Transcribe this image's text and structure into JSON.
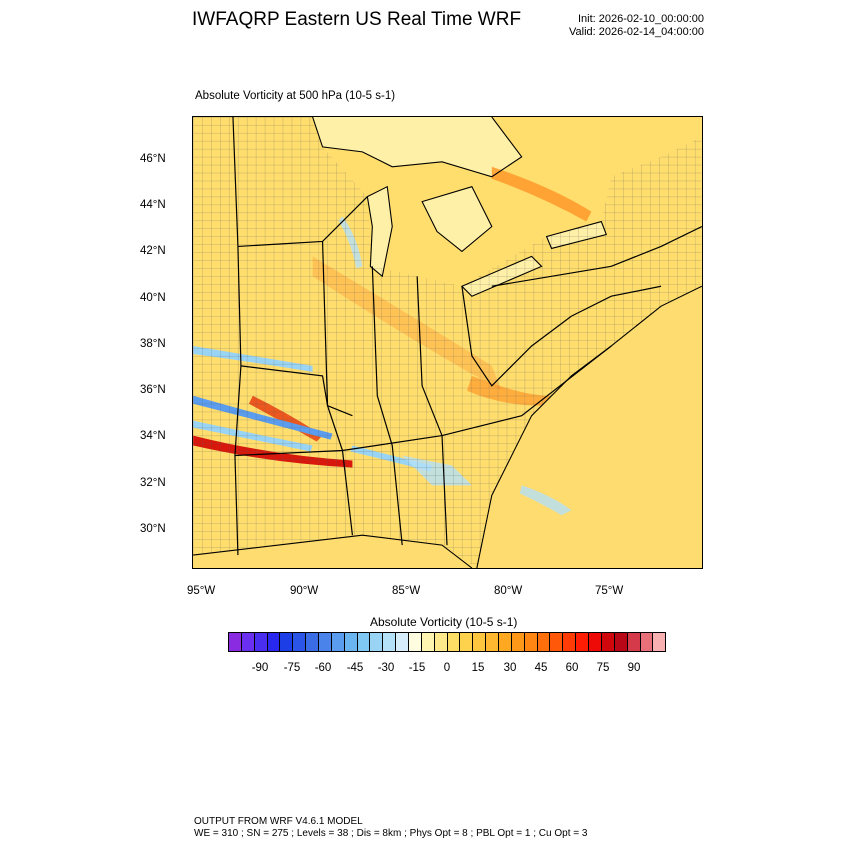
{
  "header": {
    "title": "IWFAQRP Eastern US Real Time WRF",
    "init": "Init: 2026-02-10_00:00:00",
    "valid": "Valid: 2026-02-14_04:00:00"
  },
  "plot": {
    "subtitle": "Absolute Vorticity at 500 hPa   (10-5 s-1)",
    "lat_labels": [
      "46°N",
      "44°N",
      "42°N",
      "40°N",
      "38°N",
      "36°N",
      "34°N",
      "32°N",
      "30°N"
    ],
    "lon_labels": [
      "95°W",
      "90°W",
      "85°W",
      "80°W",
      "75°W"
    ]
  },
  "colorbar": {
    "title": "Absolute Vorticity  (10-5 s-1)",
    "labels": [
      "-90",
      "-75",
      "-60",
      "-45",
      "-30",
      "-15",
      "0",
      "15",
      "30",
      "45",
      "60",
      "75",
      "90"
    ],
    "colors": [
      "#8a2be2",
      "#6a2ff0",
      "#4a2ef0",
      "#2828f0",
      "#1c3ee6",
      "#2a55e6",
      "#3a6ce6",
      "#4a84ea",
      "#5a9cee",
      "#6ab4f0",
      "#80c8f4",
      "#9ad4f4",
      "#b4e0f8",
      "#d6eefc",
      "#fffde0",
      "#fff4b0",
      "#ffe98a",
      "#ffde66",
      "#ffd24e",
      "#ffc640",
      "#ffb830",
      "#ffa822",
      "#ff9818",
      "#ff8612",
      "#ff700c",
      "#ff5808",
      "#ff3c06",
      "#ff1e04",
      "#ee0a06",
      "#d0080e",
      "#b80818",
      "#d43a4a",
      "#e87078",
      "#f8b0b0"
    ]
  },
  "footer": {
    "line1": "OUTPUT FROM WRF V4.6.1 MODEL",
    "line2": "WE = 310 ; SN = 275 ; Levels = 38 ; Dis = 8km ; Phys Opt = 8 ; PBL Opt = 1 ; Cu Opt = 3"
  }
}
